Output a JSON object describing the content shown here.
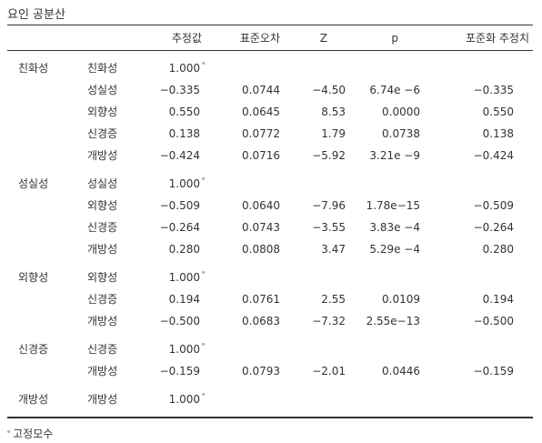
{
  "title": "요인 공분산",
  "headers": {
    "estimate": "추정값",
    "se": "표준오차",
    "z": "Z",
    "p": "p",
    "std_estimate": "포준화 추정치"
  },
  "footnote_mark": "ᵃ",
  "footnote_text": "고정모수",
  "rows": [
    {
      "factor1": "친화성",
      "factor2": "친화성",
      "estimate": "1.000",
      "mark": "ᵃ",
      "se": "",
      "z": "",
      "p": "",
      "std": ""
    },
    {
      "factor1": "",
      "factor2": "성실성",
      "estimate": "−0.335",
      "mark": "",
      "se": "0.0744",
      "z": "−4.50",
      "p": "6.74e  −6",
      "std": "−0.335"
    },
    {
      "factor1": "",
      "factor2": "외향성",
      "estimate": "0.550",
      "mark": "",
      "se": "0.0645",
      "z": "8.53",
      "p": "0.0000",
      "std": "0.550"
    },
    {
      "factor1": "",
      "factor2": "신경증",
      "estimate": "0.138",
      "mark": "",
      "se": "0.0772",
      "z": "1.79",
      "p": "0.0738",
      "std": "0.138"
    },
    {
      "factor1": "",
      "factor2": "개방성",
      "estimate": "−0.424",
      "mark": "",
      "se": "0.0716",
      "z": "−5.92",
      "p": "3.21e  −9",
      "std": "−0.424"
    },
    {
      "factor1": "성실성",
      "factor2": "성실성",
      "estimate": "1.000",
      "mark": "ᵃ",
      "se": "",
      "z": "",
      "p": "",
      "std": ""
    },
    {
      "factor1": "",
      "factor2": "외향성",
      "estimate": "−0.509",
      "mark": "",
      "se": "0.0640",
      "z": "−7.96",
      "p": "1.78e−15",
      "std": "−0.509"
    },
    {
      "factor1": "",
      "factor2": "신경증",
      "estimate": "−0.264",
      "mark": "",
      "se": "0.0743",
      "z": "−3.55",
      "p": "3.83e  −4",
      "std": "−0.264"
    },
    {
      "factor1": "",
      "factor2": "개방성",
      "estimate": "0.280",
      "mark": "",
      "se": "0.0808",
      "z": "3.47",
      "p": "5.29e  −4",
      "std": "0.280"
    },
    {
      "factor1": "외향성",
      "factor2": "외향성",
      "estimate": "1.000",
      "mark": "ᵃ",
      "se": "",
      "z": "",
      "p": "",
      "std": ""
    },
    {
      "factor1": "",
      "factor2": "신경증",
      "estimate": "0.194",
      "mark": "",
      "se": "0.0761",
      "z": "2.55",
      "p": "0.0109",
      "std": "0.194"
    },
    {
      "factor1": "",
      "factor2": "개방성",
      "estimate": "−0.500",
      "mark": "",
      "se": "0.0683",
      "z": "−7.32",
      "p": "2.55e−13",
      "std": "−0.500"
    },
    {
      "factor1": "신경증",
      "factor2": "신경증",
      "estimate": "1.000",
      "mark": "ᵃ",
      "se": "",
      "z": "",
      "p": "",
      "std": ""
    },
    {
      "factor1": "",
      "factor2": "개방성",
      "estimate": "−0.159",
      "mark": "",
      "se": "0.0793",
      "z": "−2.01",
      "p": "0.0446",
      "std": "−0.159"
    },
    {
      "factor1": "개방성",
      "factor2": "개방성",
      "estimate": "1.000",
      "mark": "ᵃ",
      "se": "",
      "z": "",
      "p": "",
      "std": ""
    }
  ]
}
